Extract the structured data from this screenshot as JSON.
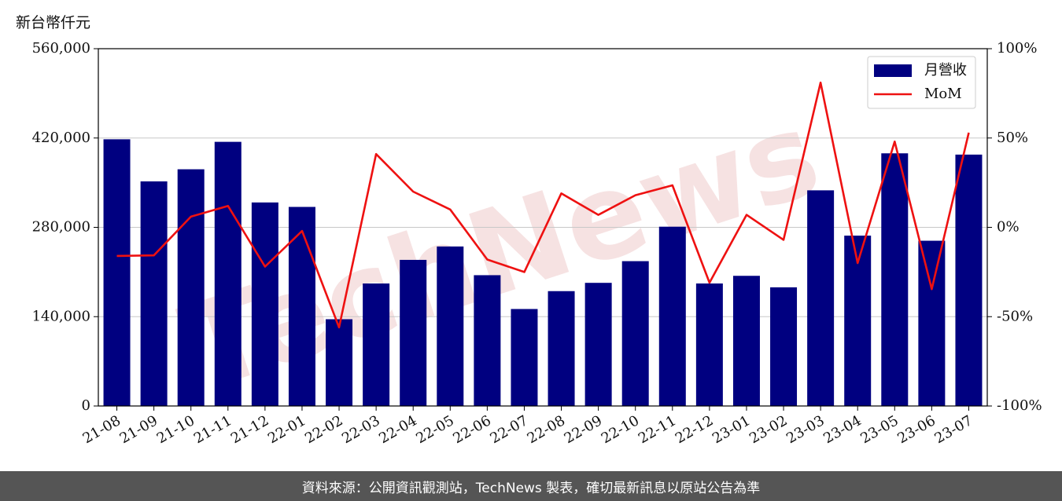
{
  "unit_label": "新台幣仟元",
  "footer": "資料來源：公開資訊觀測站，TechNews 製表，確切最新訊息以原站公告為準",
  "watermark": "TechNews",
  "colors": {
    "bar": "#000080",
    "line": "#ee1111",
    "grid": "#c8c8c8",
    "watermark": "#f3d9d9",
    "footer_bg": "#555555"
  },
  "chart_data": {
    "type": "bar",
    "categories": [
      "21-08",
      "21-09",
      "21-10",
      "21-11",
      "21-12",
      "22-01",
      "22-02",
      "22-03",
      "22-04",
      "22-05",
      "22-06",
      "22-07",
      "22-08",
      "22-09",
      "22-10",
      "22-11",
      "22-12",
      "23-01",
      "23-02",
      "23-03",
      "23-04",
      "23-05",
      "23-06",
      "23-07"
    ],
    "series": [
      {
        "name": "月營收",
        "type": "bar",
        "axis": "left",
        "values": [
          418000,
          352000,
          371000,
          414000,
          319000,
          312000,
          136000,
          192000,
          229000,
          250000,
          205000,
          152000,
          180000,
          193000,
          227000,
          281000,
          192000,
          204000,
          186000,
          338000,
          267000,
          396000,
          259000,
          394000
        ]
      },
      {
        "name": "MoM",
        "type": "line",
        "axis": "right",
        "values": [
          -16,
          -15.7,
          6,
          12,
          -22,
          -2,
          -56,
          41,
          20,
          10,
          -18,
          -25,
          19,
          7,
          18,
          23.5,
          -31,
          7,
          -7,
          81,
          -20,
          48,
          -34.6,
          53
        ]
      }
    ],
    "y_left": {
      "ticks": [
        "0",
        "140,000",
        "280,000",
        "420,000",
        "560,000"
      ],
      "tick_values": [
        0,
        140000,
        280000,
        420000,
        560000
      ],
      "ylim": [
        0,
        560000
      ]
    },
    "y_right": {
      "ticks": [
        "-100%",
        "-50%",
        "0%",
        "50%",
        "100%"
      ],
      "tick_values": [
        -100,
        -50,
        0,
        50,
        100
      ],
      "ylim": [
        -100,
        100
      ]
    },
    "grid": true,
    "legend": {
      "placement": "top-right",
      "entries": [
        "月營收",
        "MoM"
      ]
    }
  }
}
